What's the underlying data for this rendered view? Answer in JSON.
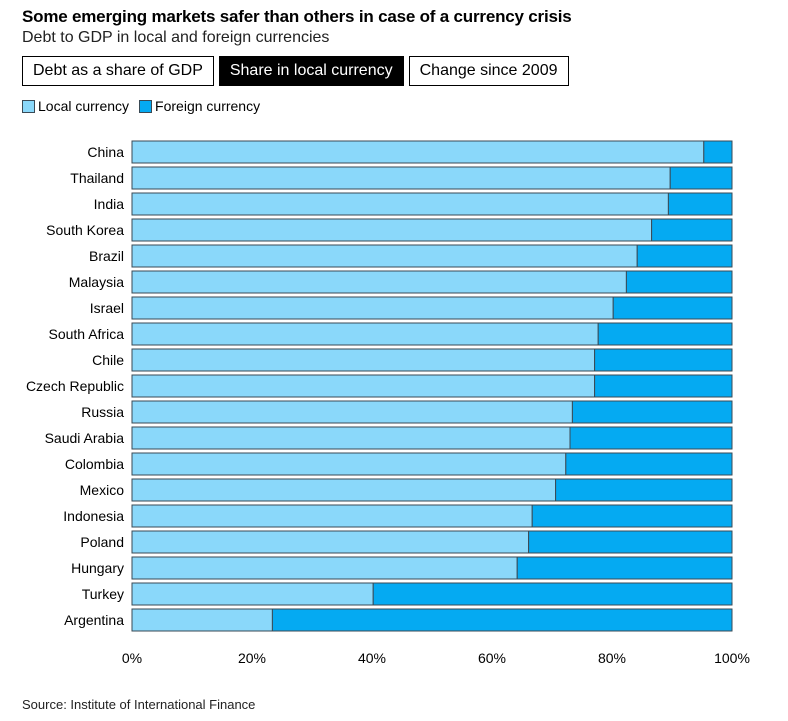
{
  "title": "Some emerging markets safer than others in case of a currency crisis",
  "subtitle": "Debt to GDP in local and foreign currencies",
  "tabs": [
    {
      "label": "Debt as a share of GDP",
      "active": false
    },
    {
      "label": "Share in local currency",
      "active": true
    },
    {
      "label": "Change since 2009",
      "active": false
    }
  ],
  "legend": [
    {
      "label": "Local currency",
      "color": "#8ad8fa"
    },
    {
      "label": "Foreign currency",
      "color": "#05aaf2"
    }
  ],
  "source": "Source: Institute of International Finance",
  "chart_data": {
    "type": "bar",
    "orientation": "horizontal",
    "stacked": true,
    "categories": [
      "China",
      "Thailand",
      "India",
      "South Korea",
      "Brazil",
      "Malaysia",
      "Israel",
      "South Africa",
      "Chile",
      "Czech Republic",
      "Russia",
      "Saudi Arabia",
      "Colombia",
      "Mexico",
      "Indonesia",
      "Poland",
      "Hungary",
      "Turkey",
      "Argentina"
    ],
    "series": [
      {
        "name": "Local currency",
        "color": "#8ad8fa",
        "values": [
          95.3,
          89.7,
          89.4,
          86.6,
          84.2,
          82.4,
          80.2,
          77.7,
          77.1,
          77.1,
          73.4,
          73.0,
          72.3,
          70.6,
          66.7,
          66.1,
          64.2,
          40.2,
          23.4
        ]
      },
      {
        "name": "Foreign currency",
        "color": "#05aaf2",
        "values": [
          4.7,
          10.3,
          10.6,
          13.4,
          15.8,
          17.6,
          19.8,
          22.3,
          22.9,
          22.9,
          26.6,
          27.0,
          27.7,
          29.4,
          33.3,
          33.9,
          35.8,
          59.8,
          76.6
        ]
      }
    ],
    "xlim": [
      0,
      100
    ],
    "xticks": [
      "0%",
      "20%",
      "40%",
      "60%",
      "80%",
      "100%"
    ],
    "grid": false,
    "legend_position": "top-left"
  }
}
